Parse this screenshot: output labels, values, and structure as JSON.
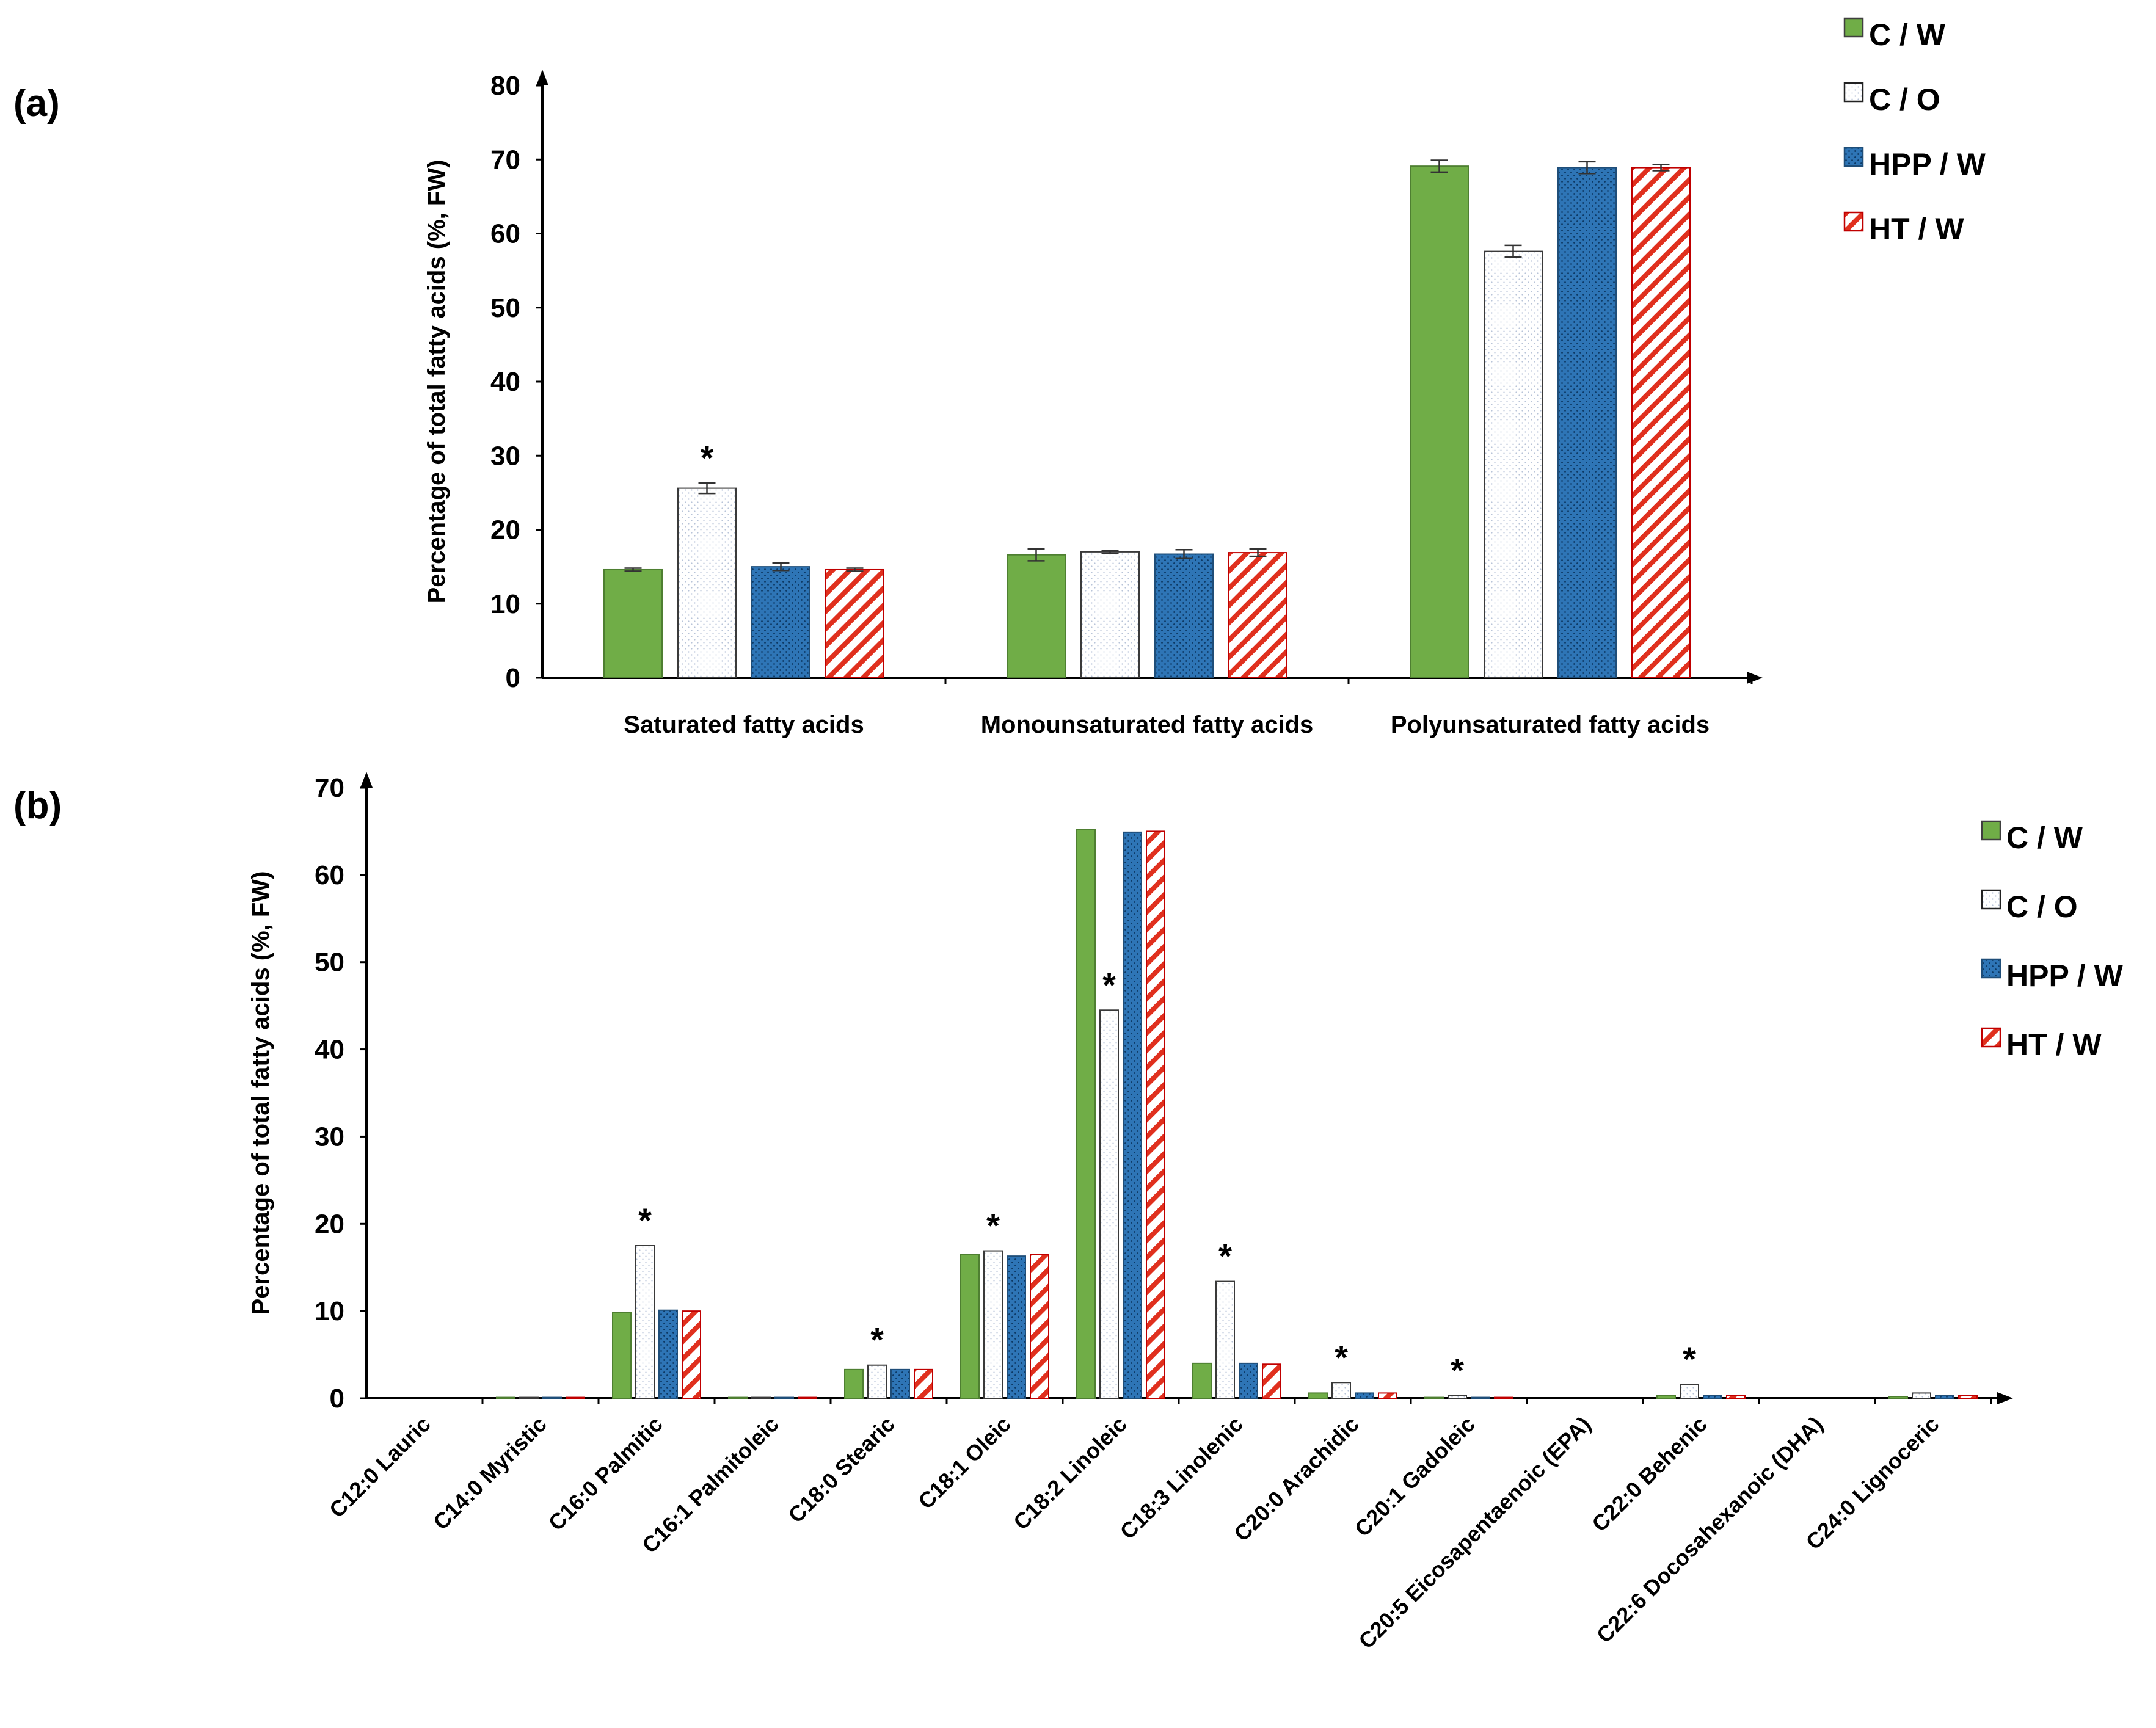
{
  "chart_data": [
    {
      "panel": "(a)",
      "type": "bar",
      "ylabel": "Percentage of total fatty acids (%, FW)",
      "xlabel": "",
      "ylim": [
        0,
        80
      ],
      "yticks": [
        0,
        10,
        20,
        30,
        40,
        50,
        60,
        70,
        80
      ],
      "categories": [
        "Saturated fatty acids",
        "Monounsaturated fatty acids",
        "Polyunsaturated fatty acids"
      ],
      "series": [
        {
          "name": "C / W",
          "values": [
            14.6,
            16.6,
            69.1
          ],
          "errors": [
            0.2,
            0.8,
            0.8
          ]
        },
        {
          "name": "C / O",
          "values": [
            25.6,
            17.0,
            57.6
          ],
          "errors": [
            0.7,
            0.2,
            0.8
          ]
        },
        {
          "name": "HPP / W",
          "values": [
            15.0,
            16.7,
            68.9
          ],
          "errors": [
            0.5,
            0.6,
            0.8
          ]
        },
        {
          "name": "HT / W",
          "values": [
            14.6,
            16.9,
            68.9
          ],
          "errors": [
            0.2,
            0.5,
            0.4
          ]
        }
      ],
      "annotations": [
        {
          "category": 0,
          "series": 1,
          "text": "*"
        }
      ],
      "legend": "top-right"
    },
    {
      "panel": "(b)",
      "type": "bar",
      "ylabel": "Percentage of total fatty acids (%, FW)",
      "xlabel": "",
      "ylim": [
        0,
        70
      ],
      "yticks": [
        0,
        10,
        20,
        30,
        40,
        50,
        60,
        70
      ],
      "categories": [
        "C12:0 Lauric",
        "C14:0 Myristic",
        "C16:0 Palmitic",
        "C16:1 Palmitoleic",
        "C18:0 Stearic",
        "C18:1 Oleic",
        "C18:2 Linoleic",
        "C18:3 Linolenic",
        "C20:0 Arachidic",
        "C20:1 Gadoleic",
        "C20:5 Eicosapentaenoic (EPA)",
        "C22:0 Behenic",
        "C22:6 Docosahexanoic (DHA)",
        "C24:0 Lignoceric"
      ],
      "series": [
        {
          "name": "C / W",
          "values": [
            0,
            0.1,
            9.8,
            0.1,
            3.3,
            16.5,
            65.2,
            4.0,
            0.6,
            0.1,
            0,
            0.3,
            0,
            0.2
          ]
        },
        {
          "name": "C / O",
          "values": [
            0,
            0.1,
            17.5,
            0.1,
            3.8,
            16.9,
            44.5,
            13.4,
            1.8,
            0.3,
            0,
            1.6,
            0,
            0.6
          ]
        },
        {
          "name": "HPP / W",
          "values": [
            0,
            0.1,
            10.1,
            0.1,
            3.3,
            16.3,
            64.9,
            4.0,
            0.6,
            0.1,
            0,
            0.3,
            0,
            0.3
          ]
        },
        {
          "name": "HT / W",
          "values": [
            0,
            0.1,
            10.0,
            0.1,
            3.3,
            16.5,
            65.0,
            3.9,
            0.6,
            0.1,
            0,
            0.3,
            0,
            0.3
          ]
        }
      ],
      "annotations": [
        {
          "category": 2,
          "series": 1,
          "text": "*"
        },
        {
          "category": 4,
          "series": 1,
          "text": "*"
        },
        {
          "category": 5,
          "series": 1,
          "text": "*"
        },
        {
          "category": 6,
          "series": 1,
          "text": "*"
        },
        {
          "category": 7,
          "series": 1,
          "text": "*"
        },
        {
          "category": 8,
          "series": 1,
          "text": "*"
        },
        {
          "category": 9,
          "series": 1,
          "text": "*"
        },
        {
          "category": 11,
          "series": 1,
          "text": "*"
        }
      ],
      "legend": "right"
    }
  ],
  "series_colors": {
    "C / W": "#70ad47",
    "C / O": "#ffffff",
    "HPP / W": "#2e75b6",
    "HT / W": "#ffffff"
  },
  "hatch_color": "#e0301e"
}
